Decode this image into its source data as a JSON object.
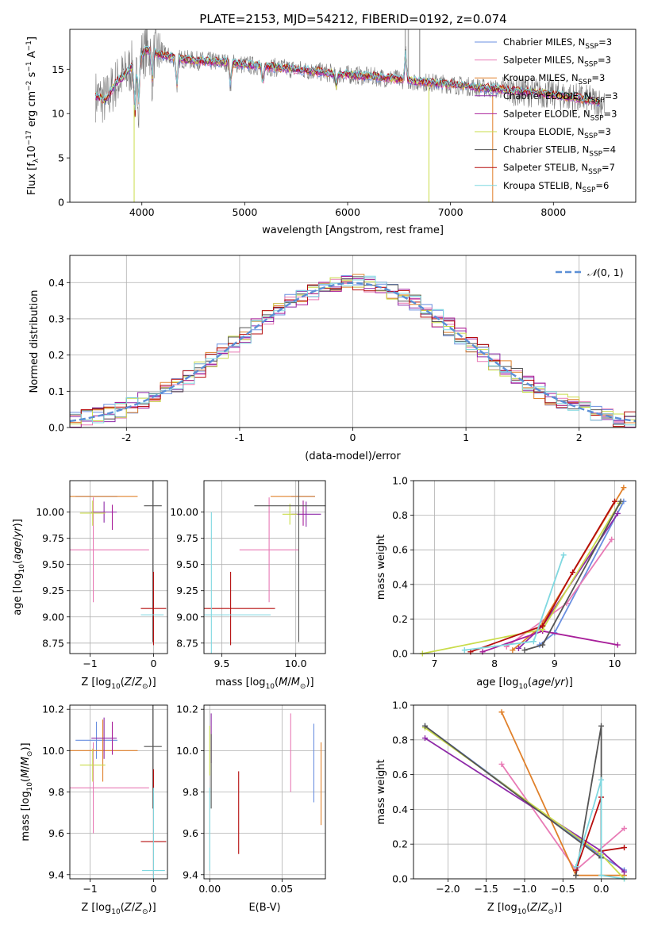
{
  "title": "PLATE=2153, MJD=54212, FIBERID=0192, z=0.074",
  "colors": {
    "chabrier_miles": "#6a8fe0",
    "salpeter_miles": "#e87ab5",
    "kroupa_miles": "#e0802a",
    "chabrier_elodie": "#8e2aa8",
    "salpeter_elodie": "#a81f9a",
    "kroupa_elodie": "#c9dc4a",
    "chabrier_stelib": "#555555",
    "salpeter_stelib": "#b50d0d",
    "kroupa_stelib": "#7fd8e0",
    "data": "#777777",
    "normal": "#5b8fd6"
  },
  "chart_data": [
    {
      "type": "line",
      "panel": "spectrum",
      "xlabel": "wavelength [Angstrom, rest frame]",
      "ylabel": "Flux [f_λ 10^-17 erg cm^-2 s^-1 A^-1]",
      "xlim": [
        3300,
        8800
      ],
      "ylim": [
        0,
        19.5
      ],
      "xticks": [
        4000,
        5000,
        6000,
        7000,
        8000
      ],
      "yticks": [
        0,
        5,
        10,
        15
      ],
      "legend_position": "top-right",
      "continuum": {
        "x": [
          3550,
          3650,
          3750,
          3850,
          3950,
          4050,
          4150,
          4300,
          4500,
          4800,
          5000,
          5200,
          5500,
          5800,
          6100,
          6400,
          6700,
          7000,
          7300,
          7600,
          7900,
          8200,
          8500
        ],
        "y": [
          12.0,
          11.5,
          13.5,
          14.5,
          16.0,
          17.2,
          16.8,
          16.3,
          16.0,
          15.8,
          15.5,
          15.3,
          15.0,
          14.6,
          14.3,
          14.0,
          13.6,
          13.3,
          12.9,
          12.6,
          12.3,
          11.8,
          11.2
        ]
      },
      "series": [
        {
          "label": "Chabrier MILES, N",
          "sub": "SSP",
          "n": "=3",
          "color_key": "chabrier_miles"
        },
        {
          "label": "Salpeter MILES, N",
          "sub": "SSP",
          "n": "=3",
          "color_key": "salpeter_miles"
        },
        {
          "label": "Kroupa MILES, N",
          "sub": "SSP",
          "n": "=3",
          "color_key": "kroupa_miles"
        },
        {
          "label": "Chabrier ELODIE, N",
          "sub": "SSP",
          "n": "=3",
          "color_key": "chabrier_elodie"
        },
        {
          "label": "Salpeter ELODIE, N",
          "sub": "SSP",
          "n": "=3",
          "color_key": "salpeter_elodie"
        },
        {
          "label": "Kroupa ELODIE, N",
          "sub": "SSP",
          "n": "=3",
          "color_key": "kroupa_elodie"
        },
        {
          "label": "Chabrier STELIB, N",
          "sub": "SSP",
          "n": "=4",
          "color_key": "chabrier_stelib"
        },
        {
          "label": "Salpeter STELIB, N",
          "sub": "SSP",
          "n": "=7",
          "color_key": "salpeter_stelib"
        },
        {
          "label": "Kroupa STELIB, N",
          "sub": "SSP",
          "n": "=6",
          "color_key": "kroupa_stelib"
        }
      ]
    },
    {
      "type": "histogram",
      "panel": "residuals",
      "xlabel": "(data-model)/error",
      "ylabel": "Normed distribution",
      "xlim": [
        -2.5,
        2.5
      ],
      "ylim": [
        0,
        0.475
      ],
      "xticks": [
        -2,
        -1,
        0,
        1,
        2
      ],
      "yticks": [
        0.0,
        0.1,
        0.2,
        0.3,
        0.4
      ],
      "grid": true,
      "legend": "N(0,1)",
      "legend_position": "top-right",
      "bin_width": 0.1
    },
    {
      "type": "scatter",
      "panel": "age_vs_Z",
      "xlabel": "Z [log10(Z/Z⊙)]",
      "ylabel": "age  [log10(age/yr)]",
      "xlim": [
        -1.32,
        0.22
      ],
      "ylim": [
        8.65,
        10.3
      ],
      "xticks": [
        -1,
        0
      ],
      "yticks": [
        8.75,
        9.0,
        9.25,
        9.5,
        9.75,
        10.0
      ],
      "grid": true,
      "points": [
        {
          "c": "chabrier_miles",
          "x": -0.9,
          "xe": 0.33,
          "y": 10.15,
          "ye": 0.0
        },
        {
          "c": "salpeter_miles",
          "x": -0.95,
          "xe": 0.88,
          "y": 9.64,
          "ye": 0.5
        },
        {
          "c": "kroupa_miles",
          "x": -0.8,
          "xe": 0.55,
          "y": 10.15,
          "ye": 0.0
        },
        {
          "c": "chabrier_elodie",
          "x": -0.78,
          "xe": 0.2,
          "y": 10.0,
          "ye": 0.1
        },
        {
          "c": "salpeter_elodie",
          "x": -0.65,
          "xe": 0.0,
          "y": 9.95,
          "ye": 0.12
        },
        {
          "c": "kroupa_elodie",
          "x": -0.96,
          "xe": 0.2,
          "y": 9.99,
          "ye": 0.12
        },
        {
          "c": "chabrier_stelib",
          "x": -0.01,
          "xe": 0.14,
          "y": 10.06,
          "ye": 1.3
        },
        {
          "c": "salpeter_stelib",
          "x": 0.0,
          "xe": 0.2,
          "y": 9.08,
          "ye": 0.35
        },
        {
          "c": "kroupa_stelib",
          "x": -0.02,
          "xe": 0.18,
          "y": 9.02,
          "ye": 0.0
        }
      ]
    },
    {
      "type": "scatter",
      "panel": "age_vs_mass",
      "xlabel": "mass [log10(M/M⊙)]",
      "ylabel": "",
      "xlim": [
        9.38,
        10.2
      ],
      "ylim": [
        8.65,
        10.3
      ],
      "xticks": [
        9.5,
        10.0
      ],
      "yticks": [
        8.75,
        9.0,
        9.25,
        9.5,
        9.75,
        10.0
      ],
      "grid": true,
      "points": [
        {
          "c": "chabrier_miles",
          "x": 10.05,
          "xe": 0.08,
          "y": 10.15,
          "ye": 0.0
        },
        {
          "c": "salpeter_miles",
          "x": 9.82,
          "xe": 0.2,
          "y": 9.64,
          "ye": 0.5
        },
        {
          "c": "kroupa_miles",
          "x": 9.98,
          "xe": 0.15,
          "y": 10.15,
          "ye": 0.0
        },
        {
          "c": "chabrier_elodie",
          "x": 10.07,
          "xe": 0.1,
          "y": 9.98,
          "ye": 0.12
        },
        {
          "c": "salpeter_elodie",
          "x": 10.05,
          "xe": 0.0,
          "y": 9.99,
          "ye": 0.12
        },
        {
          "c": "kroupa_elodie",
          "x": 9.96,
          "xe": 0.05,
          "y": 9.98,
          "ye": 0.1
        },
        {
          "c": "chabrier_stelib",
          "x": 10.02,
          "xe": 0.3,
          "y": 10.06,
          "ye": 1.3
        },
        {
          "c": "salpeter_stelib",
          "x": 9.56,
          "xe": 0.3,
          "y": 9.08,
          "ye": 0.35
        },
        {
          "c": "kroupa_stelib",
          "x": 9.43,
          "xe": 0.4,
          "y": 9.02,
          "ye": 0.98
        }
      ]
    },
    {
      "type": "line",
      "panel": "mass_weight_vs_age",
      "xlabel": "age  [log10(age/yr)]",
      "ylabel": "mass weight",
      "xlim": [
        6.65,
        10.35
      ],
      "ylim": [
        0,
        1.0
      ],
      "xticks": [
        7,
        8,
        9,
        10
      ],
      "yticks": [
        0.0,
        0.2,
        0.4,
        0.6,
        0.8,
        1.0
      ],
      "grid": true,
      "series": [
        {
          "c": "chabrier_miles",
          "x": [
            8.75,
            9.0,
            10.15
          ],
          "y": [
            0.05,
            0.12,
            0.88
          ]
        },
        {
          "c": "salpeter_miles",
          "x": [
            8.2,
            9.2,
            9.95
          ],
          "y": [
            0.04,
            0.29,
            0.66
          ]
        },
        {
          "c": "kroupa_miles",
          "x": [
            8.3,
            8.75,
            10.15
          ],
          "y": [
            0.02,
            0.15,
            0.96
          ]
        },
        {
          "c": "chabrier_elodie",
          "x": [
            8.4,
            8.8,
            10.05
          ],
          "y": [
            0.03,
            0.16,
            0.81
          ]
        },
        {
          "c": "salpeter_elodie",
          "x": [
            7.8,
            8.8,
            10.05
          ],
          "y": [
            0.01,
            0.13,
            0.05
          ]
        },
        {
          "c": "kroupa_elodie",
          "x": [
            6.8,
            8.8,
            10.08
          ],
          "y": [
            0.0,
            0.14,
            0.87
          ]
        },
        {
          "c": "chabrier_stelib",
          "x": [
            8.5,
            8.8,
            10.1
          ],
          "y": [
            0.02,
            0.05,
            0.88
          ]
        },
        {
          "c": "salpeter_stelib",
          "x": [
            7.6,
            8.8,
            9.3,
            10.0
          ],
          "y": [
            0.01,
            0.16,
            0.47,
            0.88
          ]
        },
        {
          "c": "kroupa_stelib",
          "x": [
            7.5,
            8.65,
            9.15
          ],
          "y": [
            0.02,
            0.07,
            0.57
          ]
        }
      ]
    },
    {
      "type": "scatter",
      "panel": "mass_vs_Z",
      "xlabel": "Z [log10(Z/Z⊙)]",
      "ylabel": "mass [log10(M/M⊙)]",
      "xlim": [
        -1.32,
        0.22
      ],
      "ylim": [
        9.38,
        10.22
      ],
      "xticks": [
        -1,
        0
      ],
      "yticks": [
        9.4,
        9.6,
        9.8,
        10.0,
        10.2
      ],
      "grid": true,
      "points": [
        {
          "c": "chabrier_miles",
          "x": -0.9,
          "xe": 0.33,
          "y": 10.05,
          "ye": 0.09
        },
        {
          "c": "salpeter_miles",
          "x": -0.95,
          "xe": 0.88,
          "y": 9.82,
          "ye": 0.22
        },
        {
          "c": "kroupa_miles",
          "x": -0.8,
          "xe": 0.55,
          "y": 10.0,
          "ye": 0.15
        },
        {
          "c": "chabrier_elodie",
          "x": -0.78,
          "xe": 0.2,
          "y": 10.06,
          "ye": 0.1
        },
        {
          "c": "salpeter_elodie",
          "x": -0.65,
          "xe": 0.0,
          "y": 10.06,
          "ye": 0.08
        },
        {
          "c": "kroupa_elodie",
          "x": -0.96,
          "xe": 0.2,
          "y": 9.93,
          "ye": 0.08
        },
        {
          "c": "chabrier_stelib",
          "x": -0.01,
          "xe": 0.14,
          "y": 10.02,
          "ye": 0.3
        },
        {
          "c": "salpeter_stelib",
          "x": 0.0,
          "xe": 0.2,
          "y": 9.56,
          "ye": 0.35
        },
        {
          "c": "kroupa_stelib",
          "x": 0.0,
          "xe": 0.18,
          "y": 9.42,
          "ye": 0.4
        }
      ]
    },
    {
      "type": "scatter",
      "panel": "mass_vs_ebv",
      "xlabel": "E(B-V)",
      "ylabel": "",
      "xlim": [
        -0.004,
        0.08
      ],
      "ylim": [
        9.38,
        10.22
      ],
      "xticks": [
        0.0,
        0.05
      ],
      "yticks": [
        9.4,
        9.6,
        9.8,
        10.0,
        10.2
      ],
      "grid": true,
      "points": [
        {
          "c": "chabrier_miles",
          "x": 0.072,
          "xe": 0.0,
          "y": 9.94,
          "ye": 0.19
        },
        {
          "c": "salpeter_miles",
          "x": 0.056,
          "xe": 0.0,
          "y": 9.99,
          "ye": 0.19
        },
        {
          "c": "kroupa_miles",
          "x": 0.077,
          "xe": 0.0,
          "y": 9.84,
          "ye": 0.2
        },
        {
          "c": "chabrier_elodie",
          "x": 0.001,
          "xe": 0.0,
          "y": 10.06,
          "ye": 0.12
        },
        {
          "c": "kroupa_elodie",
          "x": 0.0,
          "xe": 0.0,
          "y": 10.0,
          "ye": 0.12
        },
        {
          "c": "chabrier_stelib",
          "x": 0.001,
          "xe": 0.0,
          "y": 9.9,
          "ye": 0.18
        },
        {
          "c": "salpeter_stelib",
          "x": 0.02,
          "xe": 0.0,
          "y": 9.7,
          "ye": 0.2
        },
        {
          "c": "kroupa_stelib",
          "x": 0.0,
          "xe": 0.0,
          "y": 9.62,
          "ye": 0.2
        }
      ]
    },
    {
      "type": "line",
      "panel": "mass_weight_vs_Z",
      "xlabel": "Z [log10(Z/Z⊙)]",
      "ylabel": "mass weight",
      "xlim": [
        -2.45,
        0.45
      ],
      "ylim": [
        0,
        1.0
      ],
      "xticks": [
        -2.0,
        -1.5,
        -1.0,
        -0.5,
        0.0
      ],
      "yticks": [
        0.0,
        0.2,
        0.4,
        0.6,
        0.8,
        1.0
      ],
      "grid": true,
      "series": [
        {
          "c": "chabrier_miles",
          "x": [
            -2.3,
            0.0,
            0.3
          ],
          "y": [
            0.88,
            0.13,
            0.05
          ]
        },
        {
          "c": "salpeter_miles",
          "x": [
            -1.3,
            -0.33,
            0.3
          ],
          "y": [
            0.66,
            0.05,
            0.29
          ]
        },
        {
          "c": "kroupa_miles",
          "x": [
            -1.3,
            -0.33,
            0.3
          ],
          "y": [
            0.96,
            0.02,
            0.02
          ]
        },
        {
          "c": "chabrier_elodie",
          "x": [
            -2.3,
            0.0,
            0.3
          ],
          "y": [
            0.81,
            0.16,
            0.04
          ]
        },
        {
          "c": "kroupa_elodie",
          "x": [
            -2.3,
            0.0,
            0.3
          ],
          "y": [
            0.87,
            0.14,
            0.0
          ]
        },
        {
          "c": "chabrier_stelib",
          "x": [
            -2.3,
            0.0,
            0.0,
            -0.33
          ],
          "y": [
            0.88,
            0.12,
            0.88,
            0.02
          ]
        },
        {
          "c": "salpeter_stelib",
          "x": [
            -0.33,
            0.0,
            0.0,
            0.3
          ],
          "y": [
            0.05,
            0.47,
            0.16,
            0.18
          ]
        },
        {
          "c": "kroupa_stelib",
          "x": [
            -0.33,
            0.0,
            0.0,
            0.3
          ],
          "y": [
            0.07,
            0.57,
            0.02,
            0.0
          ]
        }
      ]
    }
  ]
}
